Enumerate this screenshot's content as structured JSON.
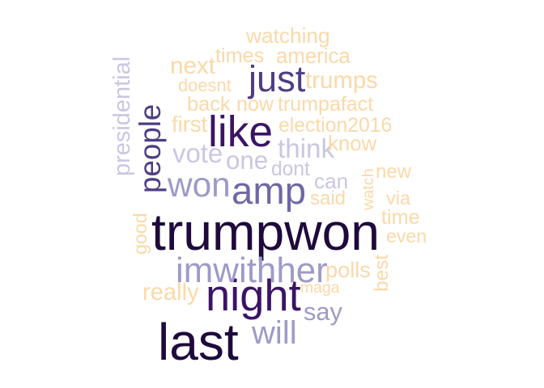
{
  "palette": {
    "dark": "#1e0a3c",
    "deep_purple": "#3b1466",
    "purple": "#4f3d83",
    "muted_purple": "#6f68a4",
    "lavender": "#9e9ac8",
    "light_lavender": "#c9c7e1",
    "peach": "#fad9a8"
  },
  "words": [
    {
      "id": "trumpwon",
      "text": "trumpwon",
      "color": "#1e0a3c"
    },
    {
      "id": "last",
      "text": "last",
      "color": "#1e0a3c"
    },
    {
      "id": "night",
      "text": "night",
      "color": "#3b1466"
    },
    {
      "id": "like",
      "text": "like",
      "color": "#3b1466"
    },
    {
      "id": "people",
      "text": "people",
      "color": "#4f3d83"
    },
    {
      "id": "just",
      "text": "just",
      "color": "#4f3d83"
    },
    {
      "id": "amp",
      "text": "amp",
      "color": "#6f68a4"
    },
    {
      "id": "imwithher",
      "text": "imwithher",
      "color": "#9e9ac8"
    },
    {
      "id": "won",
      "text": "won",
      "color": "#9e9ac8"
    },
    {
      "id": "will",
      "text": "will",
      "color": "#9e9ac8"
    },
    {
      "id": "say",
      "text": "say",
      "color": "#9e9ac8"
    },
    {
      "id": "presidential",
      "text": "presidential",
      "color": "#c9c7e1"
    },
    {
      "id": "think",
      "text": "think",
      "color": "#c9c7e1"
    },
    {
      "id": "vote",
      "text": "vote",
      "color": "#c9c7e1"
    },
    {
      "id": "one",
      "text": "one",
      "color": "#c9c7e1"
    },
    {
      "id": "dont",
      "text": "dont",
      "color": "#c9c7e1"
    },
    {
      "id": "can",
      "text": "can",
      "color": "#c9c7e1"
    },
    {
      "id": "watching",
      "text": "watching",
      "color": "#fad9a8"
    },
    {
      "id": "times",
      "text": "times",
      "color": "#fad9a8"
    },
    {
      "id": "america",
      "text": "america",
      "color": "#fad9a8"
    },
    {
      "id": "next",
      "text": "next",
      "color": "#fad9a8"
    },
    {
      "id": "trumps",
      "text": "trumps",
      "color": "#fad9a8"
    },
    {
      "id": "doesnt",
      "text": "doesnt",
      "color": "#fad9a8"
    },
    {
      "id": "back",
      "text": "back",
      "color": "#fad9a8"
    },
    {
      "id": "now",
      "text": "now",
      "color": "#fad9a8"
    },
    {
      "id": "trumpafact",
      "text": "trumpafact",
      "color": "#fad9a8"
    },
    {
      "id": "first",
      "text": "first",
      "color": "#fad9a8"
    },
    {
      "id": "election2016",
      "text": "election2016",
      "color": "#fad9a8"
    },
    {
      "id": "know",
      "text": "know",
      "color": "#fad9a8"
    },
    {
      "id": "new",
      "text": "new",
      "color": "#fad9a8"
    },
    {
      "id": "watch",
      "text": "watch",
      "color": "#fad9a8"
    },
    {
      "id": "said",
      "text": "said",
      "color": "#fad9a8"
    },
    {
      "id": "via",
      "text": "via",
      "color": "#fad9a8"
    },
    {
      "id": "time",
      "text": "time",
      "color": "#fad9a8"
    },
    {
      "id": "even",
      "text": "even",
      "color": "#fad9a8"
    },
    {
      "id": "good",
      "text": "good",
      "color": "#fad9a8"
    },
    {
      "id": "polls",
      "text": "polls",
      "color": "#fad9a8"
    },
    {
      "id": "best",
      "text": "best",
      "color": "#fad9a8"
    },
    {
      "id": "maga",
      "text": "maga",
      "color": "#fad9a8"
    },
    {
      "id": "really",
      "text": "really",
      "color": "#fad9a8"
    }
  ]
}
